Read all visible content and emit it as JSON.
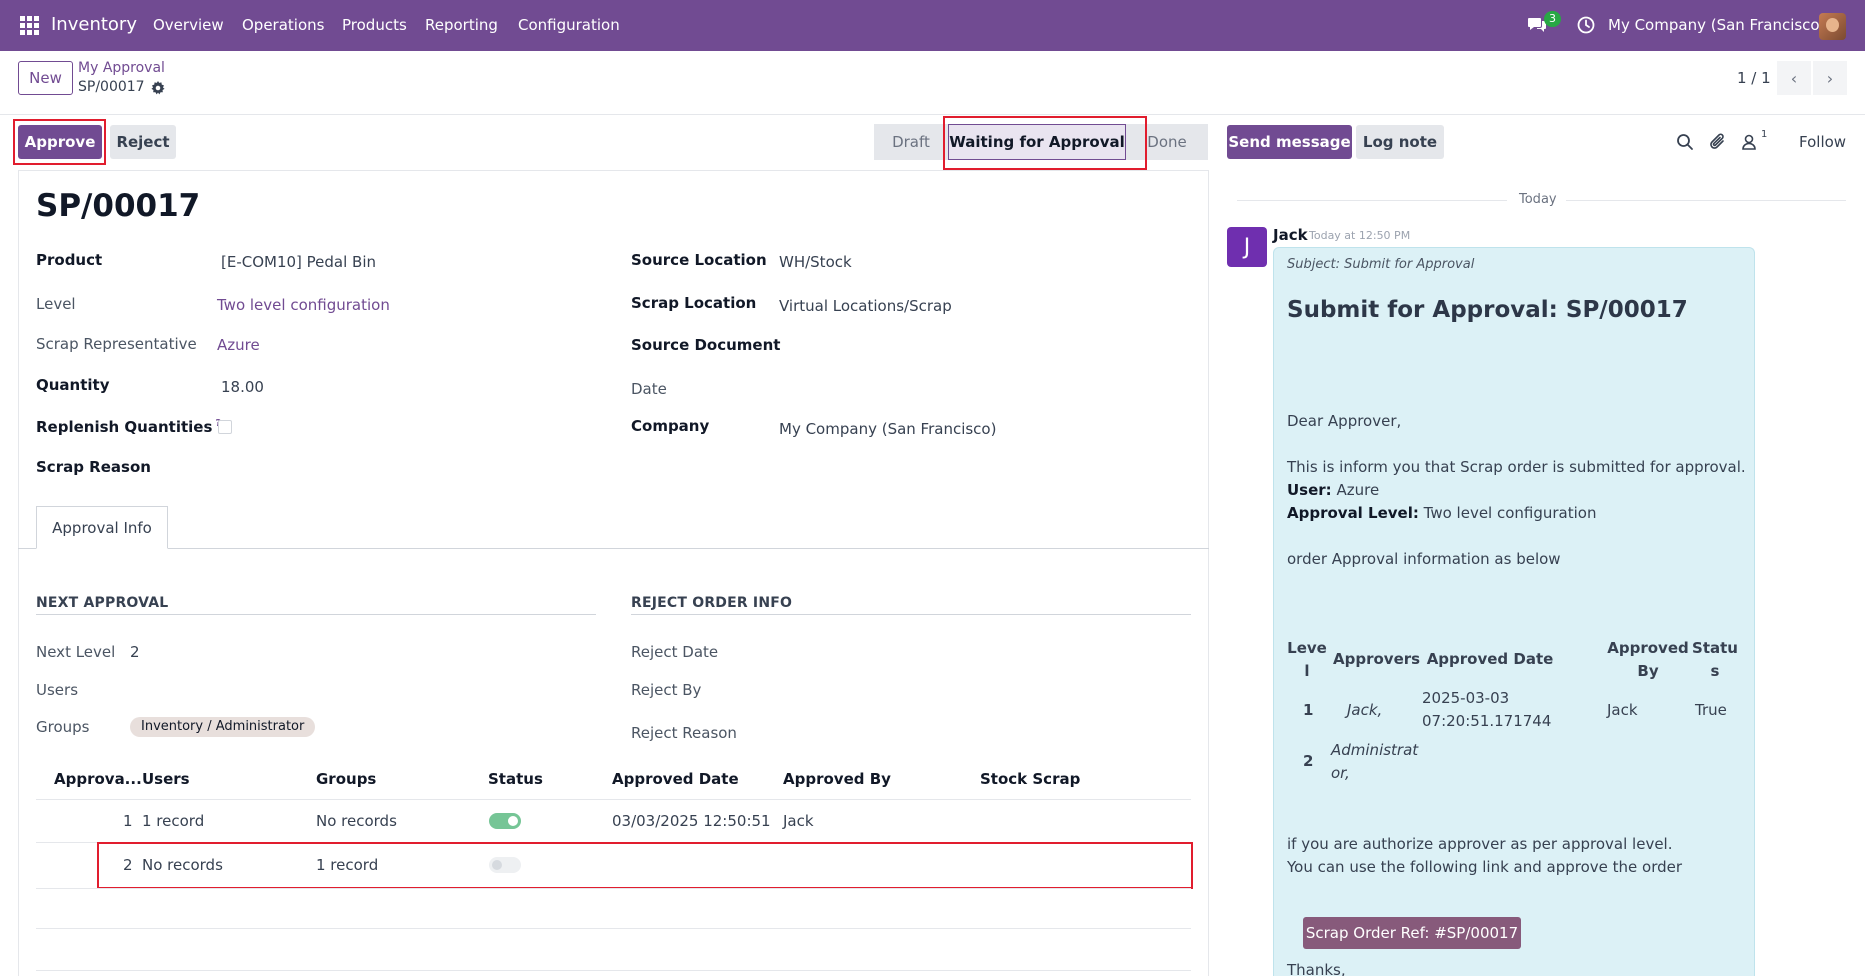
{
  "navbar": {
    "app_name": "Inventory",
    "menu": [
      "Overview",
      "Operations",
      "Products",
      "Reporting",
      "Configuration"
    ],
    "chat_badge": "3",
    "company": "My Company (San Francisco)"
  },
  "control": {
    "new_label": "New",
    "breadcrumb_parent": "My Approval",
    "breadcrumb_current": "SP/00017",
    "pager": "1 / 1"
  },
  "actions": {
    "approve": "Approve",
    "reject": "Reject"
  },
  "status_stages": [
    "Draft",
    "Waiting for Approval",
    "Done"
  ],
  "form": {
    "title": "SP/00017",
    "left_fields": [
      {
        "label": "Product",
        "value": "[E-COM10] Pedal Bin"
      },
      {
        "label": "Level",
        "value": "Two level configuration"
      },
      {
        "label": "Scrap Representative",
        "value": "Azure"
      },
      {
        "label": "Quantity",
        "value": "18.00"
      },
      {
        "label": "Replenish Quantities",
        "help": "?",
        "value": ""
      },
      {
        "label": "Scrap Reason",
        "value": ""
      }
    ],
    "right_fields": [
      {
        "label": "Source Location",
        "value": "WH/Stock"
      },
      {
        "label": "Scrap Location",
        "value": "Virtual Locations/Scrap"
      },
      {
        "label": "Source Document",
        "value": ""
      },
      {
        "label": "Date",
        "value": ""
      },
      {
        "label": "Company",
        "value": "My Company (San Francisco)"
      }
    ],
    "tab": "Approval Info",
    "next_approval": {
      "title": "NEXT APPROVAL",
      "next_level_label": "Next Level",
      "next_level": "2",
      "users_label": "Users",
      "groups_label": "Groups",
      "group_tag": "Inventory / Administrator"
    },
    "reject_info": {
      "title": "REJECT ORDER INFO",
      "reject_date": "Reject Date",
      "reject_by": "Reject By",
      "reject_reason": "Reject Reason"
    },
    "table": {
      "columns": [
        "Approva...",
        "Users",
        "Groups",
        "Status",
        "Approved Date",
        "Approved By",
        "Stock Scrap"
      ],
      "rows": [
        {
          "level": "1",
          "users": "1 record",
          "groups": "No records",
          "status_on": true,
          "approved_date": "03/03/2025 12:50:51",
          "approved_by": "Jack",
          "stock_scrap": ""
        },
        {
          "level": "2",
          "users": "No records",
          "groups": "1 record",
          "status_on": false,
          "approved_date": "",
          "approved_by": "",
          "stock_scrap": ""
        }
      ]
    }
  },
  "chatter": {
    "send_message": "Send message",
    "log_note": "Log note",
    "followers_count": "1",
    "follow": "Follow",
    "date_separator": "Today",
    "message": {
      "avatar_letter": "J",
      "author": "Jack",
      "date": "Today at 12:50 PM",
      "subject": "Subject: Submit for Approval",
      "heading": "Submit for Approval: SP/00017",
      "greeting": "Dear Approver,",
      "intro": "This is inform you that Scrap order is submitted for approval.",
      "user_label": "User:",
      "user_value": "Azure",
      "level_label": "Approval Level:",
      "level_value": "Two level configuration",
      "info_line": "order Approval information as below",
      "table_headers": [
        "Leve l",
        "Approvers",
        "Approved Date",
        "Approved By",
        "Statu s"
      ],
      "table_rows": [
        {
          "level": "1",
          "approvers": "Jack,",
          "date": "2025-03-03 07:20:51.171744",
          "by": "Jack",
          "status": "True"
        },
        {
          "level": "2",
          "approvers": "Administrat or,",
          "date": "",
          "by": "",
          "status": ""
        }
      ],
      "closing_1": "if you are authorize approver as per approval level.",
      "closing_2": "You can use the following link and approve the order",
      "ref_button": "Scrap Order Ref: #SP/00017",
      "thanks": "Thanks,"
    }
  }
}
